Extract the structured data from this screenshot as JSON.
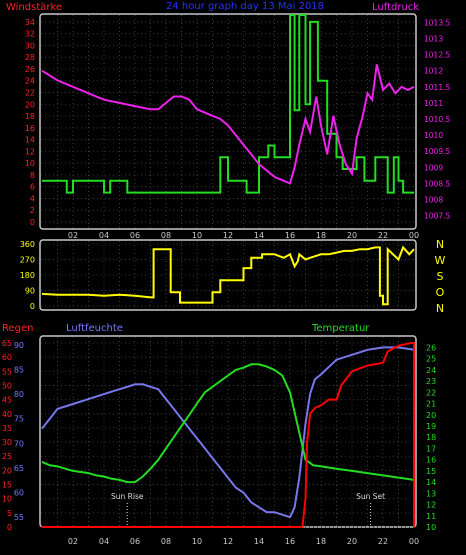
{
  "chart_data": [
    {
      "type": "line",
      "title": "24 hour graph day 13 Mai 2018",
      "left_axis_label": "Windstärke",
      "right_axis_label": "Luftdruck",
      "left_ticks": [
        "0",
        "2",
        "4",
        "6",
        "8",
        "10",
        "12",
        "14",
        "16",
        "18",
        "20",
        "22",
        "24",
        "26",
        "28",
        "30",
        "32",
        "34"
      ],
      "right_ticks": [
        "1007.5",
        "1008",
        "1008.5",
        "1009",
        "1009.5",
        "1010",
        "1010.5",
        "1011",
        "1011.5",
        "1012",
        "1012.5",
        "1013",
        "1013.5"
      ],
      "x_ticks": [
        "02",
        "04",
        "06",
        "08",
        "10",
        "12",
        "14",
        "16",
        "18",
        "20",
        "22",
        "00"
      ],
      "ylim_left": [
        0,
        35
      ],
      "ylim_right": [
        1007.3,
        1013.7
      ],
      "series": [
        {
          "name": "Windstärke",
          "color": "#22dd22",
          "axis": "left",
          "x": [
            0,
            1.6,
            1.6,
            2,
            2,
            4,
            4,
            4.4,
            4.4,
            5.5,
            5.5,
            8,
            8,
            10,
            10,
            11.5,
            11.5,
            12,
            12,
            13.2,
            13.2,
            14,
            14,
            14.6,
            14.6,
            15,
            15,
            16,
            16,
            16.3,
            16.3,
            16.6,
            16.6,
            17,
            17,
            17.3,
            17.3,
            17.8,
            17.8,
            18.4,
            18.4,
            19,
            19,
            19.4,
            19.4,
            20.3,
            20.3,
            20.8,
            20.8,
            21.5,
            21.5,
            22.3,
            22.3,
            22.7,
            22.7,
            23,
            23,
            23.3,
            23.3,
            24
          ],
          "y": [
            7,
            7,
            5,
            5,
            7,
            7,
            5,
            5,
            7,
            7,
            5,
            5,
            5,
            5,
            5,
            5,
            11,
            11,
            7,
            7,
            5,
            5,
            11,
            11,
            13,
            13,
            11,
            11,
            36,
            36,
            19,
            19,
            36,
            36,
            20,
            20,
            34,
            34,
            24,
            24,
            15,
            15,
            11,
            11,
            9,
            9,
            11,
            11,
            7,
            7,
            11,
            11,
            5,
            5,
            11,
            11,
            7,
            7,
            5,
            5
          ]
        },
        {
          "name": "Luftdruck",
          "color": "#ee22ee",
          "axis": "right",
          "x": [
            0,
            1,
            2,
            3,
            4,
            5,
            6,
            7,
            7.5,
            8,
            8.5,
            9,
            9.5,
            10,
            10.5,
            11,
            11.5,
            12,
            12.5,
            13,
            13.5,
            14,
            14.5,
            15,
            15.5,
            16,
            16.3,
            16.6,
            17,
            17.3,
            17.7,
            18,
            18.4,
            18.8,
            19.2,
            19.6,
            20,
            20.3,
            20.7,
            21,
            21.3,
            21.6,
            22,
            22.4,
            22.8,
            23.2,
            23.6,
            24
          ],
          "y": [
            1012,
            1011.7,
            1011.5,
            1011.3,
            1011.1,
            1011,
            1010.9,
            1010.8,
            1010.8,
            1011,
            1011.2,
            1011.2,
            1011.1,
            1010.8,
            1010.7,
            1010.6,
            1010.5,
            1010.3,
            1010,
            1009.7,
            1009.4,
            1009.1,
            1008.9,
            1008.7,
            1008.6,
            1008.5,
            1009,
            1009.7,
            1010.5,
            1010.1,
            1011.2,
            1010.3,
            1009.4,
            1010.6,
            1009.7,
            1009.1,
            1008.8,
            1009.9,
            1010.6,
            1011.3,
            1011.1,
            1012.2,
            1011.4,
            1011.6,
            1011.3,
            1011.5,
            1011.4,
            1011.5
          ]
        }
      ]
    },
    {
      "type": "line",
      "title": "",
      "right_axis_label": "NWSON",
      "right_letters": [
        "N",
        "W",
        "S",
        "O",
        "N"
      ],
      "left_ticks": [
        "0",
        "90",
        "180",
        "270",
        "360"
      ],
      "x_ticks": [
        "02",
        "04",
        "06",
        "08",
        "10",
        "12",
        "14",
        "16",
        "18",
        "20",
        "22",
        "00"
      ],
      "ylim": [
        0,
        360
      ],
      "series": [
        {
          "name": "Windrichtung",
          "color": "#ffff00",
          "x": [
            0,
            1,
            3,
            4,
            5,
            6,
            7,
            7.2,
            7.2,
            8.3,
            8.3,
            8.9,
            8.9,
            10,
            10,
            11,
            11,
            11.5,
            11.5,
            12.2,
            12.2,
            13,
            13,
            13.5,
            13.5,
            14.2,
            14.2,
            15,
            15.6,
            16,
            16.3,
            16.5,
            16.6,
            17,
            17.3,
            18,
            18.5,
            19,
            19.5,
            20,
            20.5,
            21,
            21.5,
            21.8,
            21.8,
            22,
            22,
            22.3,
            22.3,
            23,
            23.3,
            23.7,
            24
          ],
          "y": [
            70,
            65,
            65,
            60,
            65,
            60,
            50,
            50,
            330,
            330,
            80,
            80,
            20,
            20,
            20,
            20,
            80,
            80,
            150,
            150,
            150,
            150,
            220,
            220,
            280,
            280,
            300,
            300,
            280,
            300,
            230,
            260,
            300,
            270,
            280,
            300,
            300,
            310,
            320,
            320,
            330,
            330,
            340,
            340,
            60,
            60,
            10,
            10,
            330,
            270,
            340,
            300,
            330
          ]
        }
      ]
    },
    {
      "type": "line",
      "title": "",
      "left_outer_label": "Regen",
      "left_inner_label": "Luftfeuchte",
      "right_label": "Temperatur",
      "regen_ticks": [
        "0",
        "5",
        "10",
        "15",
        "20",
        "25",
        "30",
        "35",
        "40",
        "45",
        "50",
        "55",
        "60",
        "65"
      ],
      "feuchte_ticks": [
        "55",
        "60",
        "65",
        "70",
        "75",
        "80",
        "85",
        "90"
      ],
      "temp_ticks": [
        "10",
        "11",
        "12",
        "13",
        "14",
        "15",
        "16",
        "17",
        "18",
        "19",
        "20",
        "21",
        "22",
        "23",
        "24",
        "25",
        "26"
      ],
      "x_ticks": [
        "02",
        "04",
        "06",
        "08",
        "10",
        "12",
        "14",
        "16",
        "18",
        "20",
        "22",
        "00"
      ],
      "annotations": [
        {
          "text": "Sun Rise",
          "x": 5.5
        },
        {
          "text": "Sun Set",
          "x": 21.2
        }
      ],
      "ylim_regen": [
        0,
        65
      ],
      "ylim_feuchte": [
        53,
        91
      ],
      "ylim_temp": [
        10,
        26.4
      ],
      "series": [
        {
          "name": "Regen",
          "color": "#ff0000",
          "axis": "regen",
          "x": [
            0,
            16.5,
            16.8,
            17,
            17.1,
            17.3,
            17.6,
            18,
            18.5,
            19,
            19.3,
            20,
            21,
            22,
            22.3,
            23,
            23.8,
            24,
            24
          ],
          "y": [
            0,
            0,
            0,
            10,
            30,
            40,
            42,
            43,
            45,
            45,
            50,
            55,
            57,
            58,
            62,
            64,
            65,
            65,
            0
          ]
        },
        {
          "name": "Luftfeuchte",
          "color": "#7777ee",
          "axis": "feuchte",
          "x": [
            0,
            0.5,
            1,
            2,
            3,
            4,
            5,
            5.5,
            6,
            6.5,
            7,
            7.5,
            8,
            8.5,
            9,
            9.5,
            10,
            10.5,
            11,
            11.5,
            12,
            12.5,
            13,
            13.5,
            14,
            14.5,
            15,
            15.5,
            16,
            16.3,
            16.6,
            17,
            17.3,
            17.6,
            18,
            19,
            20,
            21,
            22,
            23,
            24
          ],
          "y": [
            73,
            75,
            77,
            78,
            79,
            80,
            81,
            81.5,
            82,
            82,
            81.5,
            81,
            79,
            77,
            75,
            73,
            71,
            69,
            67,
            65,
            63,
            61,
            60,
            58,
            57,
            56,
            56,
            55.5,
            55,
            57,
            63,
            74,
            80,
            83,
            84,
            87,
            88,
            89,
            89.5,
            89.5,
            89
          ]
        },
        {
          "name": "Temperatur",
          "color": "#22dd22",
          "axis": "temp",
          "x": [
            0,
            0.5,
            1,
            1.5,
            2,
            2.5,
            3,
            3.5,
            4,
            4.5,
            5,
            5.5,
            6,
            6.5,
            7,
            7.5,
            8,
            8.5,
            9,
            9.5,
            10,
            10.5,
            11,
            11.5,
            12,
            12.5,
            13,
            13.5,
            14,
            14.5,
            15,
            15.5,
            16,
            16.5,
            17,
            17.5,
            18,
            19,
            20,
            21,
            22,
            23,
            24
          ],
          "y": [
            15.8,
            15.5,
            15.4,
            15.2,
            15,
            14.9,
            14.8,
            14.6,
            14.5,
            14.3,
            14.2,
            14,
            14,
            14.5,
            15.2,
            16,
            17,
            18,
            19,
            20,
            21,
            22,
            22.5,
            23,
            23.5,
            24,
            24.2,
            24.5,
            24.5,
            24.3,
            24,
            23.5,
            22,
            19,
            16,
            15.5,
            15.4,
            15.2,
            15,
            14.8,
            14.6,
            14.4,
            14.2
          ]
        }
      ]
    }
  ]
}
